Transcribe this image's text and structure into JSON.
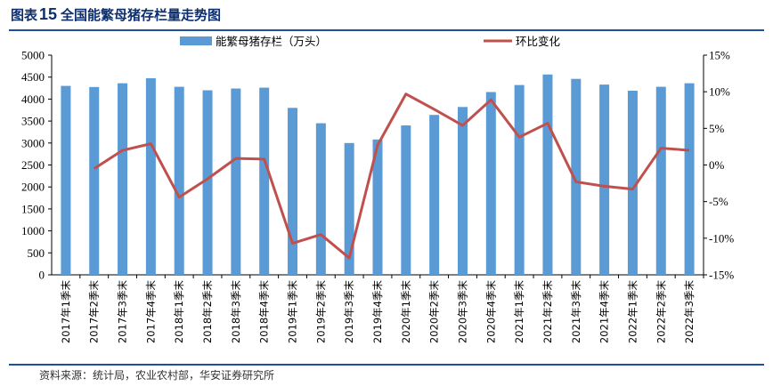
{
  "figure": {
    "label": "图表",
    "number": "15",
    "title": "全国能繁母猪存栏量走势图",
    "source": "资料来源：统计局，农业农村部，华安证券研究所"
  },
  "chart_data": {
    "type": "bar",
    "title": "全国能繁母猪存栏量走势图",
    "categories": [
      "2017年1季末",
      "2017年2季末",
      "2017年3季末",
      "2017年4季末",
      "2018年1季末",
      "2018年2季末",
      "2018年3季末",
      "2018年4季末",
      "2019年1季末",
      "2019年2季末",
      "2019年3季末",
      "2019年4季末",
      "2020年1季末",
      "2020年2季末",
      "2020年3季末",
      "2020年4季末",
      "2021年1季末",
      "2021年2季末",
      "2021年3季末",
      "2021年4季末",
      "2022年1季末",
      "2022年2季末",
      "2022年3季末"
    ],
    "series": [
      {
        "name": "能繁母猪存栏（万头）",
        "type": "bar",
        "axis": "left",
        "color": "#5b9bd5",
        "values": [
          4300,
          4275,
          4360,
          4475,
          4280,
          4200,
          4240,
          4260,
          3800,
          3450,
          3000,
          3080,
          3400,
          3640,
          3820,
          4160,
          4320,
          4560,
          4460,
          4330,
          4190,
          4280,
          4360
        ]
      },
      {
        "name": "环比变化",
        "type": "line",
        "axis": "right",
        "unit": "%",
        "color": "#c0504d",
        "values": [
          null,
          -0.5,
          2.0,
          2.9,
          -4.4,
          -1.9,
          0.9,
          0.8,
          -10.7,
          -9.5,
          -12.7,
          2.7,
          9.7,
          7.6,
          5.4,
          8.9,
          3.8,
          5.7,
          -2.3,
          -2.9,
          -3.3,
          2.3,
          2.0
        ]
      }
    ],
    "y_left": {
      "min": 0,
      "max": 5000,
      "ticks": [
        0,
        500,
        1000,
        1500,
        2000,
        2500,
        3000,
        3500,
        4000,
        4500,
        5000
      ]
    },
    "y_right": {
      "min": -15,
      "max": 15,
      "ticks": [
        "-15%",
        "-10%",
        "-5%",
        "0%",
        "5%",
        "10%",
        "15%"
      ]
    },
    "legend_position": "top",
    "grid": false
  }
}
